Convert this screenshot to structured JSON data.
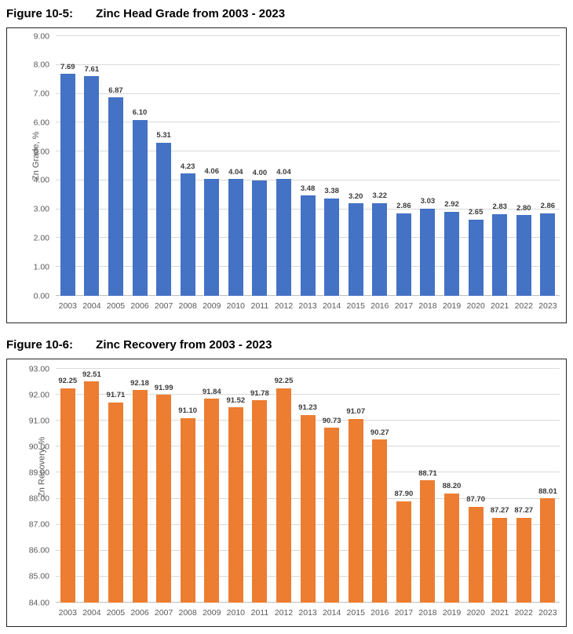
{
  "figures": [
    {
      "title_prefix": "Figure 10-5:",
      "title_text": "Zinc Head Grade from 2003 - 2023"
    },
    {
      "title_prefix": "Figure 10-6:",
      "title_text": "Zinc Recovery from 2003 - 2023"
    }
  ],
  "chart_data": [
    {
      "type": "bar",
      "title": "Figure 10-5:  Zinc Head Grade from 2003 - 2023",
      "xlabel": "",
      "ylabel": "Zn Grade, %",
      "ylim": [
        0,
        9
      ],
      "ytick_step": 1,
      "grid": true,
      "legend": "none",
      "bar_color": "#4472C4",
      "label_color": "#3b3b3b",
      "categories": [
        "2003",
        "2004",
        "2005",
        "2006",
        "2007",
        "2008",
        "2009",
        "2010",
        "2011",
        "2012",
        "2013",
        "2014",
        "2015",
        "2016",
        "2017",
        "2018",
        "2019",
        "2020",
        "2021",
        "2022",
        "2023"
      ],
      "values": [
        7.69,
        7.61,
        6.87,
        6.1,
        5.31,
        4.23,
        4.06,
        4.04,
        4.0,
        4.04,
        3.48,
        3.38,
        3.2,
        3.22,
        2.86,
        3.03,
        2.92,
        2.65,
        2.83,
        2.8,
        2.86
      ]
    },
    {
      "type": "bar",
      "title": "Figure 10-6:  Zinc Recovery from 2003 - 2023",
      "xlabel": "",
      "ylabel": "Zn Recovery, %",
      "ylim": [
        84,
        93
      ],
      "ytick_step": 1,
      "grid": true,
      "legend": "none",
      "bar_color": "#ED7D31",
      "label_color": "#3b3b3b",
      "categories": [
        "2003",
        "2004",
        "2005",
        "2006",
        "2007",
        "2008",
        "2009",
        "2010",
        "2011",
        "2012",
        "2013",
        "2014",
        "2015",
        "2016",
        "2017",
        "2018",
        "2019",
        "2020",
        "2021",
        "2022",
        "2023"
      ],
      "values": [
        92.25,
        92.51,
        91.71,
        92.18,
        91.99,
        91.1,
        91.84,
        91.52,
        91.78,
        92.25,
        91.23,
        90.73,
        91.07,
        90.27,
        87.9,
        88.71,
        88.2,
        87.7,
        87.27,
        87.27,
        88.01
      ]
    }
  ]
}
